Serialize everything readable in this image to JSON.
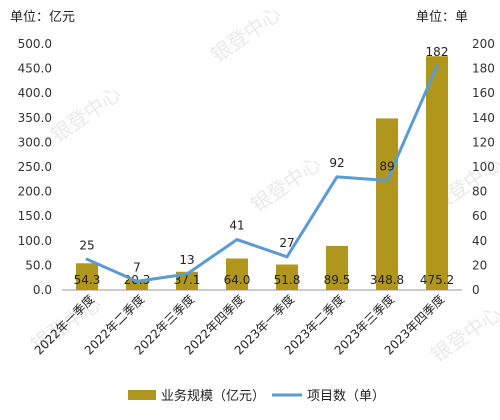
{
  "chart_data": {
    "type": "bar",
    "categories": [
      "2022年一季度",
      "2022年二季度",
      "2022年三季度",
      "2022年四季度",
      "2023年一季度",
      "2023年二季度",
      "2023年三季度",
      "2023年四季度"
    ],
    "series": [
      {
        "name": "业务规模（亿元）",
        "kind": "bar",
        "axis": "left",
        "color": "#b0961c",
        "values": [
          54.3,
          20.3,
          37.1,
          64.0,
          51.8,
          89.5,
          348.8,
          475.2
        ],
        "labels": [
          "54.3",
          "20.3",
          "37.1",
          "64.0",
          "51.8",
          "89.5",
          "348.8",
          "475.2"
        ]
      },
      {
        "name": "项目数（单）",
        "kind": "line",
        "axis": "right",
        "color": "#5b9bd5",
        "values": [
          25,
          7,
          13,
          41,
          27,
          92,
          89,
          182
        ],
        "labels": [
          "25",
          "7",
          "13",
          "41",
          "27",
          "92",
          "89",
          "182"
        ]
      }
    ],
    "left_axis": {
      "unit_label": "单位：亿元",
      "ylim": [
        0,
        500
      ],
      "ticks": [
        "0.0",
        "50.0",
        "100.0",
        "150.0",
        "200.0",
        "250.0",
        "300.0",
        "350.0",
        "400.0",
        "450.0",
        "500.0"
      ]
    },
    "right_axis": {
      "unit_label": "单位：单",
      "ylim": [
        0,
        200
      ],
      "ticks": [
        "0",
        "20",
        "40",
        "60",
        "80",
        "100",
        "120",
        "140",
        "160",
        "180",
        "200"
      ]
    },
    "legend_position": "bottom",
    "grid": false,
    "watermark": "银登中心"
  }
}
